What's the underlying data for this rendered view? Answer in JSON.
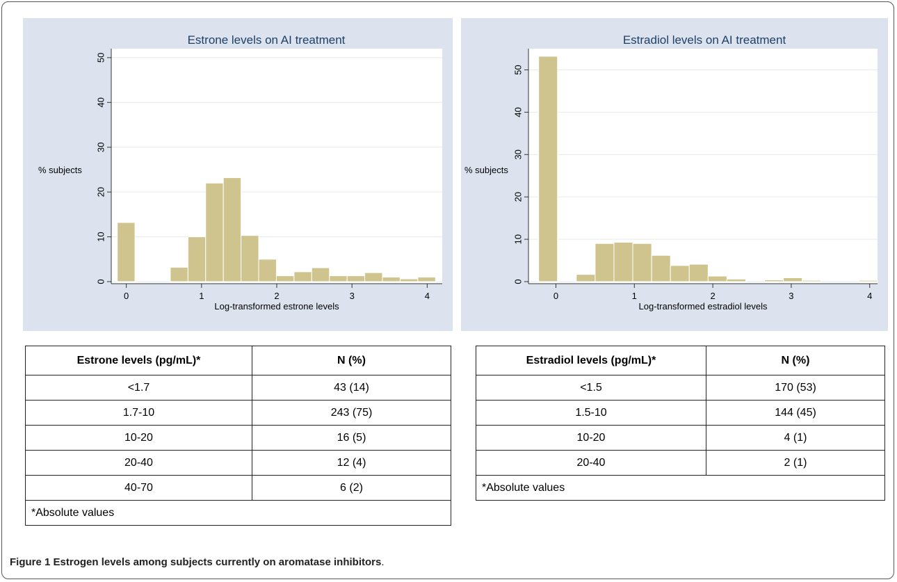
{
  "chart_data": [
    {
      "type": "bar",
      "title": "Estrone levels on AI treatment",
      "xlabel": "Log-transformed estrone levels",
      "ylabel": "% subjects",
      "xlim": [
        -0.2,
        4.2
      ],
      "ylim": [
        0,
        52
      ],
      "xticks": [
        "0",
        "1",
        "2",
        "3",
        "4"
      ],
      "yticks": [
        "0",
        "10",
        "20",
        "30",
        "40",
        "50"
      ],
      "bar_color": "#cfc48e",
      "bin_start": -0.12,
      "bin_width": 0.235,
      "values": [
        13.2,
        0,
        0,
        3.2,
        10.0,
        22.0,
        23.2,
        10.3,
        5.0,
        1.3,
        2.2,
        3.1,
        1.3,
        1.3,
        2.0,
        1.0,
        0.6,
        1.0
      ]
    },
    {
      "type": "bar",
      "title": "Estradiol levels on AI treatment",
      "xlabel": "Log-transformed estradiol levels",
      "ylabel": "% subjects",
      "xlim": [
        -0.35,
        4.1
      ],
      "ylim": [
        0,
        55
      ],
      "xticks": [
        "0",
        "1",
        "2",
        "3",
        "4"
      ],
      "yticks": [
        "0",
        "10",
        "20",
        "30",
        "40",
        "50"
      ],
      "bar_color": "#cfc48e",
      "bin_start": -0.22,
      "bin_width": 0.24,
      "values": [
        53.2,
        0,
        1.7,
        9.0,
        9.3,
        9.0,
        6.2,
        3.8,
        4.1,
        1.3,
        0.6,
        0,
        0.4,
        0.9,
        0.3,
        0,
        0,
        0.3
      ]
    }
  ],
  "tables": {
    "estrone": {
      "headers": [
        "Estrone levels (pg/mL)*",
        "N (%)"
      ],
      "rows": [
        [
          "<1.7",
          "43 (14)"
        ],
        [
          "1.7-10",
          "243 (75)"
        ],
        [
          "10-20",
          "16 (5)"
        ],
        [
          "20-40",
          "12 (4)"
        ],
        [
          "40-70",
          "6 (2)"
        ]
      ],
      "note": "*Absolute values"
    },
    "estradiol": {
      "headers": [
        "Estradiol levels (pg/mL)*",
        "N (%)"
      ],
      "rows": [
        [
          "<1.5",
          "170 (53)"
        ],
        [
          "1.5-10",
          "144 (45)"
        ],
        [
          "10-20",
          "4 (1)"
        ],
        [
          "20-40",
          "2 (1)"
        ]
      ],
      "note": "*Absolute values"
    }
  },
  "caption": {
    "label": "Figure 1",
    "text": "Estrogen levels among subjects currently on aromatase inhibitors",
    "end": "."
  }
}
